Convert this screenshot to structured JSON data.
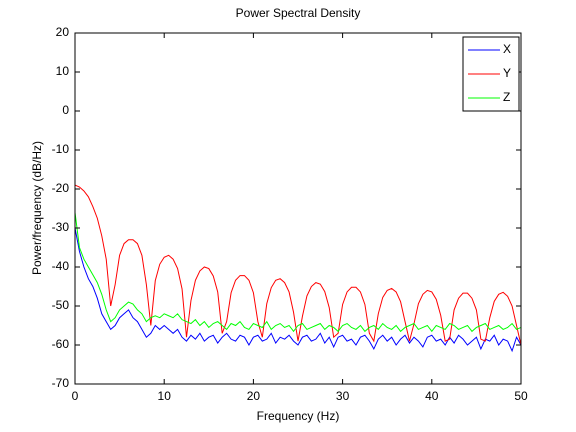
{
  "chart_data": {
    "type": "line",
    "title": "Power Spectral Density",
    "xlabel": "Frequency (Hz)",
    "ylabel": "Power/frequency (dB/Hz)",
    "x": [
      0,
      0.5,
      1,
      1.5,
      2,
      2.5,
      3,
      3.5,
      4,
      4.5,
      5,
      5.5,
      6,
      6.5,
      7,
      7.5,
      8,
      8.5,
      9,
      9.5,
      10,
      10.5,
      11,
      11.5,
      12,
      12.5,
      13,
      13.5,
      14,
      14.5,
      15,
      15.5,
      16,
      16.5,
      17,
      17.5,
      18,
      18.5,
      19,
      19.5,
      20,
      20.5,
      21,
      21.5,
      22,
      22.5,
      23,
      23.5,
      24,
      24.5,
      25,
      25.5,
      26,
      26.5,
      27,
      27.5,
      28,
      28.5,
      29,
      29.5,
      30,
      30.5,
      31,
      31.5,
      32,
      32.5,
      33,
      33.5,
      34,
      34.5,
      35,
      35.5,
      36,
      36.5,
      37,
      37.5,
      38,
      38.5,
      39,
      39.5,
      40,
      40.5,
      41,
      41.5,
      42,
      42.5,
      43,
      43.5,
      44,
      44.5,
      45,
      45.5,
      46,
      46.5,
      47,
      47.5,
      48,
      48.5,
      49,
      49.5,
      50
    ],
    "series": [
      {
        "name": "X",
        "color": "#0000ff",
        "values": [
          -30,
          -36,
          -40,
          -43,
          -45,
          -48,
          -52,
          -54,
          -56,
          -55,
          -53,
          -52,
          -51,
          -53,
          -54,
          -56,
          -58,
          -57,
          -55,
          -56,
          -55,
          -56,
          -57,
          -56,
          -58,
          -59,
          -57.5,
          -58.5,
          -57,
          -59,
          -58,
          -57.5,
          -59.5,
          -58,
          -57,
          -58.5,
          -59,
          -57.5,
          -58,
          -60,
          -58,
          -57.5,
          -59,
          -58.5,
          -57,
          -59.5,
          -58,
          -58.5,
          -57.5,
          -59,
          -60,
          -58,
          -57.5,
          -59,
          -58.5,
          -57,
          -59.5,
          -58,
          -60.5,
          -58,
          -57.5,
          -59,
          -58.5,
          -60,
          -58,
          -57.5,
          -59,
          -61,
          -58.5,
          -57.5,
          -59,
          -58,
          -60,
          -58.5,
          -57.5,
          -59.5,
          -58,
          -59,
          -60.5,
          -58,
          -57.5,
          -59,
          -58.5,
          -60,
          -58,
          -59.5,
          -57.5,
          -58.5,
          -60,
          -59,
          -58,
          -61,
          -58.5,
          -59,
          -57.5,
          -60,
          -58.5,
          -59,
          -61.5,
          -58,
          -60
        ]
      },
      {
        "name": "Y",
        "color": "#ff0000",
        "values": [
          -19,
          -19.5,
          -20.5,
          -22,
          -24.5,
          -27.5,
          -32,
          -38,
          -50,
          -44.5,
          -37,
          -34,
          -33,
          -33,
          -34,
          -37,
          -44.5,
          -55,
          -43.5,
          -39.3,
          -37.5,
          -37,
          -38,
          -40.4,
          -45.6,
          -58,
          -48.6,
          -43.4,
          -41,
          -40,
          -40.4,
          -42.3,
          -46.4,
          -57,
          -54,
          -46.6,
          -43.4,
          -42.2,
          -42.2,
          -43.4,
          -46.6,
          -54,
          -58,
          -49.4,
          -45.3,
          -43.4,
          -43,
          -44,
          -46.4,
          -51.6,
          -59,
          -52.6,
          -47.4,
          -45,
          -44,
          -44.4,
          -46.3,
          -50.4,
          -58,
          -57,
          -49.6,
          -46.4,
          -45.2,
          -45.2,
          -46.4,
          -49.6,
          -57,
          -59,
          -52,
          -47.8,
          -46,
          -45.5,
          -46.4,
          -48.9,
          -54,
          -59,
          -54.6,
          -49.4,
          -47,
          -46,
          -46.4,
          -48.3,
          -52.4,
          -59,
          -58.5,
          -51,
          -48,
          -46.7,
          -46.7,
          -48,
          -51,
          -58.5,
          -59,
          -53,
          -48.8,
          -47,
          -46.5,
          -47.5,
          -50,
          -55,
          -60
        ]
      },
      {
        "name": "Z",
        "color": "#00ff00",
        "values": [
          -26,
          -35,
          -38,
          -40,
          -42,
          -44,
          -47,
          -51,
          -54,
          -53,
          -51,
          -50,
          -49,
          -49.5,
          -51,
          -52,
          -54,
          -53,
          -52.5,
          -53,
          -52,
          -52.5,
          -53,
          -52,
          -53.5,
          -54,
          -54.5,
          -53.5,
          -55,
          -54,
          -55.5,
          -54.5,
          -54,
          -55,
          -56,
          -54.5,
          -55,
          -54,
          -55.5,
          -56,
          -54.5,
          -55,
          -55.5,
          -54,
          -56,
          -55,
          -54.5,
          -55.5,
          -55,
          -56.5,
          -55,
          -54.5,
          -56,
          -55.5,
          -55,
          -54.5,
          -56,
          -55,
          -55.5,
          -56.5,
          -55,
          -54.5,
          -55.5,
          -56,
          -55,
          -56.5,
          -55.5,
          -55,
          -56,
          -54.5,
          -55.5,
          -56,
          -55,
          -56.5,
          -55.5,
          -55,
          -54.5,
          -56,
          -55.5,
          -55,
          -56.5,
          -55,
          -55.5,
          -56,
          -54.5,
          -55,
          -56,
          -55.5,
          -55,
          -56.5,
          -55.5,
          -55,
          -54.5,
          -56,
          -55.5,
          -55,
          -56,
          -55.5,
          -54.5,
          -56,
          -55.5
        ]
      }
    ],
    "xlim": [
      0,
      50
    ],
    "xticks": [
      0,
      10,
      20,
      30,
      40,
      50
    ],
    "ylim": [
      -70,
      20
    ],
    "yticks": [
      -70,
      -60,
      -50,
      -40,
      -30,
      -20,
      -10,
      0,
      10,
      20
    ],
    "legend": "upper right"
  }
}
